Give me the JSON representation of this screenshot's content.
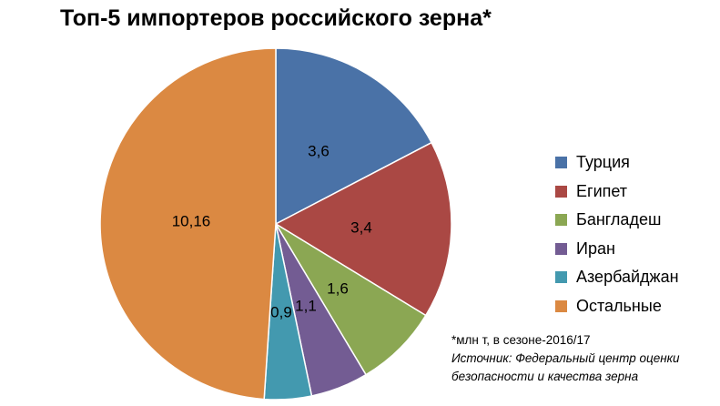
{
  "chart_data": {
    "type": "pie",
    "title": "Топ-5 импортеров российского зерна*",
    "slices": [
      {
        "name": "Турция",
        "value": 3.6,
        "label": "3,6",
        "color": "#4A72A7"
      },
      {
        "name": "Египет",
        "value": 3.4,
        "label": "3,4",
        "color": "#AA4844"
      },
      {
        "name": "Бангладеш",
        "value": 1.6,
        "label": "1,6",
        "color": "#8BA753"
      },
      {
        "name": "Иран",
        "value": 1.1,
        "label": "1,1",
        "color": "#735C93"
      },
      {
        "name": "Азербайджан",
        "value": 0.9,
        "label": "0,9",
        "color": "#4399AF"
      },
      {
        "name": "Остальные",
        "value": 10.16,
        "label": "10,16",
        "color": "#DB8942"
      }
    ],
    "legend_position": "right"
  },
  "footnote": {
    "units": "*млн т,  в сезоне-2016/17",
    "source_line1": "Источник:  Федеральный центр оценки",
    "source_line2": "безопасности и качества зерна"
  }
}
